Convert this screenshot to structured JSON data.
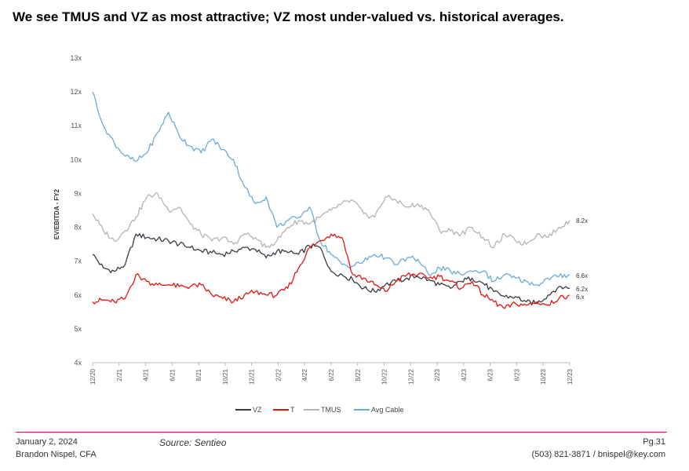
{
  "page": {
    "title": "We see TMUS and VZ as most attractive; VZ most under-valued vs. historical averages.",
    "date": "January 2, 2024",
    "author": "Brandon Nispel, CFA",
    "source": "Source: Sentieo",
    "page_number": "Pg.31",
    "contact": "(503) 821-3871 / bnispel@key.com"
  },
  "chart_data": {
    "type": "line",
    "ylabel": "EV/EBITDA - FY2",
    "xlabel": "",
    "ylim": [
      4,
      13
    ],
    "y_ticks": [
      "4x",
      "5x",
      "6x",
      "7x",
      "8x",
      "9x",
      "10x",
      "11x",
      "12x",
      "13x"
    ],
    "x_ticks": [
      "12/20",
      "2/21",
      "4/21",
      "6/21",
      "8/21",
      "10/21",
      "12/21",
      "2/22",
      "4/22",
      "6/22",
      "8/22",
      "10/22",
      "12/22",
      "2/23",
      "4/23",
      "6/23",
      "8/23",
      "10/23",
      "12/23"
    ],
    "legend_position": "bottom",
    "grid": false,
    "series": [
      {
        "name": "VZ",
        "color": "#3a3a46",
        "end_label": "6.2x",
        "values": [
          7.2,
          6.8,
          6.7,
          6.9,
          7.8,
          7.7,
          7.65,
          7.6,
          7.5,
          7.4,
          7.3,
          7.25,
          7.2,
          7.3,
          7.4,
          7.35,
          7.1,
          7.3,
          7.25,
          7.2,
          7.45,
          7.4,
          6.7,
          6.6,
          6.45,
          6.2,
          6.1,
          6.3,
          6.4,
          6.5,
          6.55,
          6.45,
          6.3,
          6.2,
          6.4,
          6.5,
          6.35,
          6.1,
          5.95,
          5.95,
          5.8,
          5.75,
          6.0,
          6.25,
          6.2
        ]
      },
      {
        "name": "T",
        "color": "#e3140f",
        "end_label": "6.x",
        "values": [
          5.8,
          5.85,
          5.8,
          5.9,
          6.6,
          6.4,
          6.3,
          6.3,
          6.25,
          6.25,
          6.3,
          6.0,
          5.9,
          5.8,
          6.0,
          6.1,
          6.0,
          6.0,
          6.2,
          6.8,
          7.4,
          7.6,
          7.8,
          7.7,
          6.6,
          6.5,
          6.3,
          6.1,
          6.4,
          6.6,
          6.6,
          6.5,
          6.55,
          6.4,
          6.2,
          6.4,
          6.0,
          5.8,
          5.6,
          5.75,
          5.7,
          5.8,
          5.7,
          5.9,
          6.0
        ]
      },
      {
        "name": "TMUS",
        "color": "#b4b4b4",
        "end_label": "8.2x",
        "values": [
          8.4,
          7.9,
          7.6,
          7.9,
          8.3,
          8.9,
          9.0,
          8.5,
          8.6,
          8.1,
          7.8,
          7.6,
          7.7,
          7.5,
          7.8,
          7.7,
          7.4,
          7.6,
          8.0,
          8.2,
          8.1,
          8.3,
          8.5,
          8.7,
          8.8,
          8.4,
          8.3,
          8.9,
          8.8,
          8.6,
          8.7,
          8.5,
          7.9,
          7.9,
          7.8,
          8.0,
          7.7,
          7.4,
          7.8,
          7.6,
          7.5,
          7.8,
          7.7,
          8.0,
          8.2
        ]
      },
      {
        "name": "Avg Cable",
        "color": "#6aaad8",
        "end_label": "6.6x",
        "values": [
          12.0,
          11.0,
          10.5,
          10.1,
          9.95,
          10.2,
          10.8,
          11.4,
          10.7,
          10.4,
          10.2,
          10.6,
          10.3,
          10.0,
          9.2,
          8.7,
          8.9,
          8.0,
          8.2,
          8.3,
          8.6,
          7.6,
          7.2,
          6.9,
          6.85,
          7.0,
          7.2,
          7.1,
          6.9,
          7.1,
          7.05,
          6.6,
          6.8,
          6.7,
          6.6,
          6.7,
          6.7,
          6.4,
          6.6,
          6.5,
          6.4,
          6.3,
          6.5,
          6.55,
          6.6
        ]
      }
    ]
  }
}
